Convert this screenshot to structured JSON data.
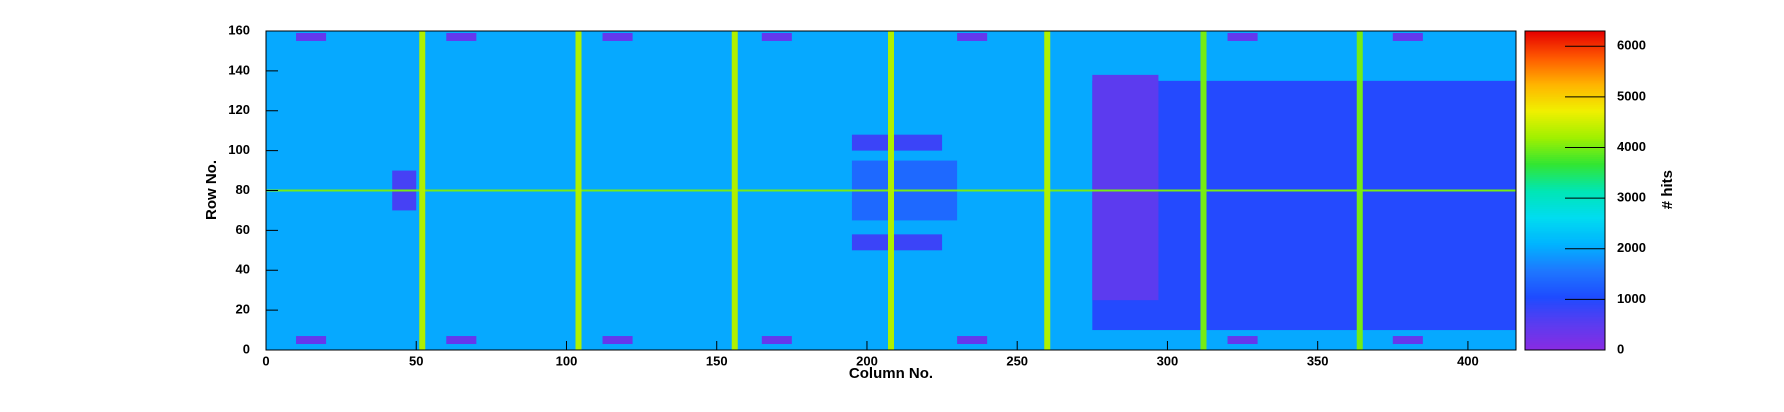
{
  "chart_data": {
    "type": "heatmap",
    "xlabel": "Column No.",
    "ylabel": "Row No.",
    "zlabel": "# hits",
    "xlim": [
      0,
      416
    ],
    "ylim": [
      0,
      160
    ],
    "zlim": [
      0,
      6300
    ],
    "xticks": [
      0,
      50,
      100,
      150,
      200,
      250,
      300,
      350,
      400
    ],
    "yticks": [
      0,
      20,
      40,
      60,
      80,
      100,
      120,
      140,
      160
    ],
    "zticks": [
      0,
      1000,
      2000,
      3000,
      4000,
      5000,
      6000
    ],
    "colormap": [
      "#8a2be2",
      "#5a3cf0",
      "#1e4bff",
      "#1e78ff",
      "#00b4ff",
      "#00dcf0",
      "#00e6b4",
      "#32e632",
      "#a0f000",
      "#f0f000",
      "#ffb400",
      "#ff5a00",
      "#e60000"
    ],
    "regions": [
      {
        "x": [
          0,
          416
        ],
        "y": [
          0,
          160
        ],
        "value": 2000
      },
      {
        "x": [
          275,
          416
        ],
        "y": [
          10,
          135
        ],
        "value": 1000
      },
      {
        "x": [
          275,
          297
        ],
        "y": [
          25,
          138
        ],
        "value": 500
      },
      {
        "x": [
          195,
          230
        ],
        "y": [
          65,
          95
        ],
        "value": 1400
      },
      {
        "x": [
          195,
          225
        ],
        "y": [
          50,
          58
        ],
        "value": 800
      },
      {
        "x": [
          195,
          225
        ],
        "y": [
          100,
          108
        ],
        "value": 800
      },
      {
        "x": [
          42,
          50
        ],
        "y": [
          70,
          90
        ],
        "value": 700
      },
      {
        "x": [
          10,
          20
        ],
        "y": [
          155,
          159
        ],
        "value": 400
      },
      {
        "x": [
          60,
          70
        ],
        "y": [
          155,
          159
        ],
        "value": 400
      },
      {
        "x": [
          112,
          122
        ],
        "y": [
          155,
          159
        ],
        "value": 400
      },
      {
        "x": [
          165,
          175
        ],
        "y": [
          155,
          159
        ],
        "value": 400
      },
      {
        "x": [
          230,
          240
        ],
        "y": [
          155,
          159
        ],
        "value": 400
      },
      {
        "x": [
          320,
          330
        ],
        "y": [
          155,
          159
        ],
        "value": 400
      },
      {
        "x": [
          375,
          385
        ],
        "y": [
          155,
          159
        ],
        "value": 400
      },
      {
        "x": [
          10,
          20
        ],
        "y": [
          3,
          7
        ],
        "value": 400
      },
      {
        "x": [
          60,
          70
        ],
        "y": [
          3,
          7
        ],
        "value": 400
      },
      {
        "x": [
          112,
          122
        ],
        "y": [
          3,
          7
        ],
        "value": 400
      },
      {
        "x": [
          165,
          175
        ],
        "y": [
          3,
          7
        ],
        "value": 400
      },
      {
        "x": [
          230,
          240
        ],
        "y": [
          3,
          7
        ],
        "value": 400
      },
      {
        "x": [
          320,
          330
        ],
        "y": [
          3,
          7
        ],
        "value": 400
      },
      {
        "x": [
          375,
          385
        ],
        "y": [
          3,
          7
        ],
        "value": 400
      },
      {
        "x": [
          0,
          416
        ],
        "y": [
          79.5,
          80.5
        ],
        "value": 4000
      },
      {
        "x": [
          51,
          53
        ],
        "y": [
          0,
          160
        ],
        "value": 4300
      },
      {
        "x": [
          103,
          105
        ],
        "y": [
          0,
          160
        ],
        "value": 4300
      },
      {
        "x": [
          155,
          157
        ],
        "y": [
          0,
          160
        ],
        "value": 4300
      },
      {
        "x": [
          207,
          209
        ],
        "y": [
          0,
          160
        ],
        "value": 4300
      },
      {
        "x": [
          259,
          261
        ],
        "y": [
          0,
          160
        ],
        "value": 4300
      },
      {
        "x": [
          311,
          313
        ],
        "y": [
          0,
          160
        ],
        "value": 4000
      },
      {
        "x": [
          363,
          365
        ],
        "y": [
          0,
          160
        ],
        "value": 4000
      }
    ]
  }
}
